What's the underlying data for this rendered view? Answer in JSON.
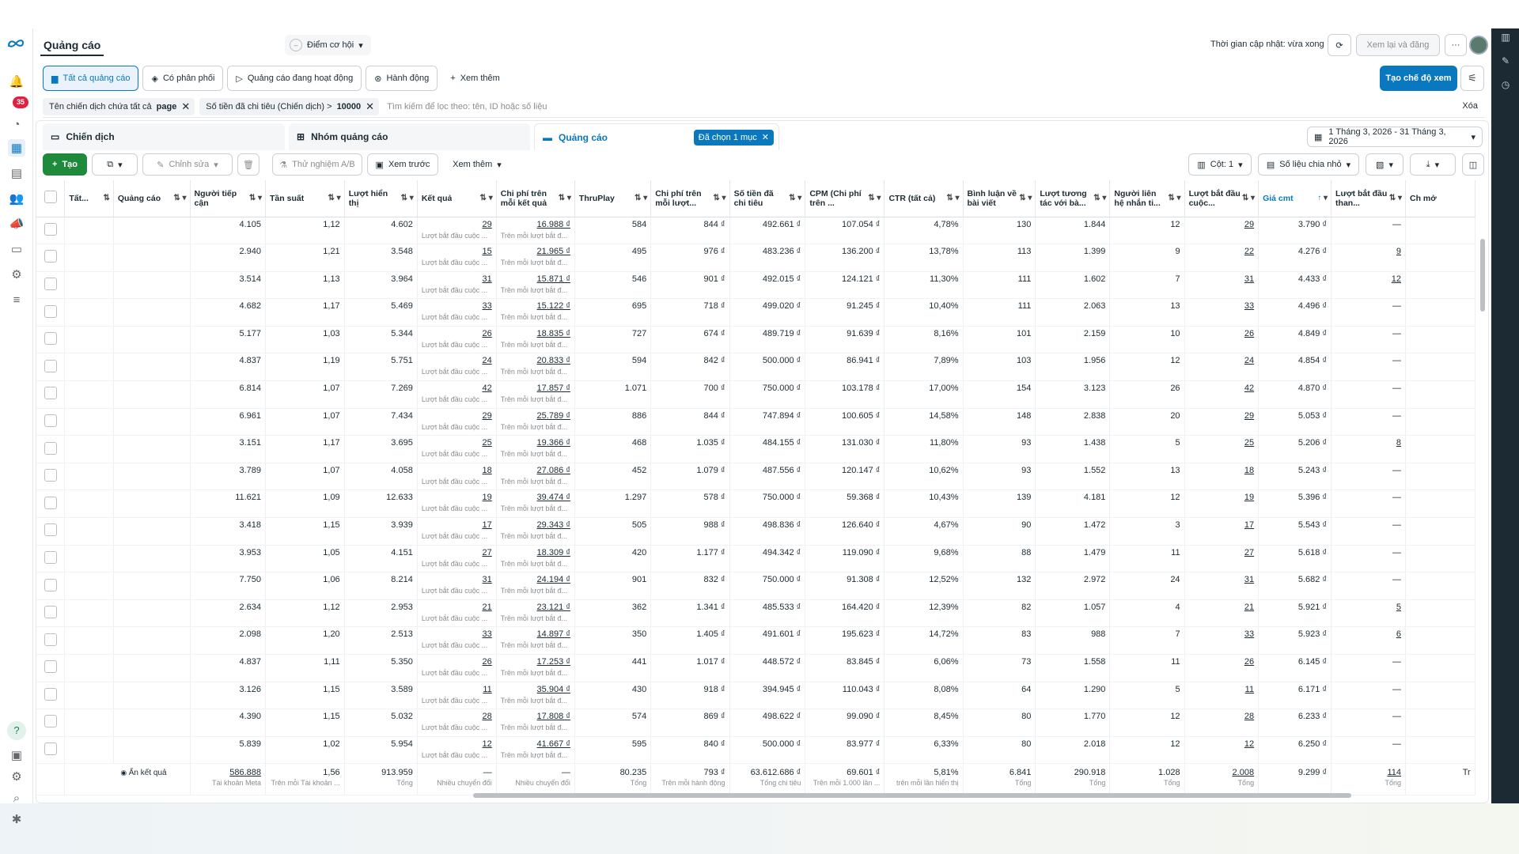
{
  "header": {
    "title": "Quảng cáo",
    "opportunity": "Điểm cơ hội",
    "update_text": "Thời gian cập nhật: vừa xong",
    "review_publish": "Xem lại và đăng",
    "more": "···"
  },
  "rail": {
    "badge": "35",
    "help": "?"
  },
  "tabs": [
    {
      "label": "Tất cả quảng cáo",
      "icon": "folder-icon"
    },
    {
      "label": "Có phân phối",
      "icon": "delivery-icon"
    },
    {
      "label": "Quảng cáo đang hoạt động",
      "icon": "play-icon"
    },
    {
      "label": "Hành động",
      "icon": "action-icon"
    },
    {
      "label": "Xem thêm",
      "icon": "plus-icon"
    }
  ],
  "create_view": "Tạo chế độ xem",
  "filters": {
    "chips": [
      {
        "label": "Tên chiến dịch chứa tất cả",
        "value": "page"
      },
      {
        "label": "Số tiền đã chi tiêu (Chiến dịch) >",
        "value": "10000"
      }
    ],
    "search_placeholder": "Tìm kiếm để lọc theo: tên, ID hoặc số liệu",
    "clear": "Xóa"
  },
  "levels": {
    "campaign": "Chiến dịch",
    "adset": "Nhóm quảng cáo",
    "ad": "Quảng cáo",
    "selected": "Đã chọn 1 mục"
  },
  "date_range": "1 Tháng 3, 2026 - 31 Tháng 3, 2026",
  "toolbar": {
    "create": "Tạo",
    "edit": "Chỉnh sửa",
    "ab_test": "Thử nghiệm A/B",
    "preview": "Xem trước",
    "more": "Xem thêm",
    "columns": "Cột: 1",
    "breakdown": "Số liệu chia nhỏ"
  },
  "columns": [
    "Tất...",
    "Quảng cáo",
    "Người tiếp cận",
    "Tần suất",
    "Lượt hiển thị",
    "Kết quả",
    "Chi phí trên mỗi kết quả",
    "ThruPlay",
    "Chi phí trên mỗi lượt...",
    "Số tiền đã chi tiêu",
    "CPM (Chi phí trên ...",
    "CTR (tất cả)",
    "Bình luận về bài viết",
    "Lượt tương tác với bà...",
    "Người liên hệ nhắn ti...",
    "Lượt bắt đầu cuộc...",
    "Giá cmt",
    "Lượt bắt đầu than...",
    "Ch mở"
  ],
  "result_sub": "Lượt bắt đầu cuộc ...",
  "cost_sub": "Trên mỗi lượt bắt đ...",
  "rows": [
    [
      "4.105",
      "1,12",
      "4.602",
      "29",
      "16.988 ₫",
      "584",
      "844 ₫",
      "492.661 ₫",
      "107.054 ₫",
      "4,78%",
      "130",
      "1.844",
      "12",
      "29",
      "3.790 ₫",
      "—"
    ],
    [
      "2.940",
      "1,21",
      "3.548",
      "15",
      "21.965 ₫",
      "495",
      "976 ₫",
      "483.236 ₫",
      "136.200 ₫",
      "13,78%",
      "113",
      "1.399",
      "9",
      "22",
      "4.276 ₫",
      "9"
    ],
    [
      "3.514",
      "1,13",
      "3.964",
      "31",
      "15.871 ₫",
      "546",
      "901 ₫",
      "492.015 ₫",
      "124.121 ₫",
      "11,30%",
      "111",
      "1.602",
      "7",
      "31",
      "4.433 ₫",
      "12"
    ],
    [
      "4.682",
      "1,17",
      "5.469",
      "33",
      "15.122 ₫",
      "695",
      "718 ₫",
      "499.020 ₫",
      "91.245 ₫",
      "10,40%",
      "111",
      "2.063",
      "13",
      "33",
      "4.496 ₫",
      "—"
    ],
    [
      "5.177",
      "1,03",
      "5.344",
      "26",
      "18.835 ₫",
      "727",
      "674 ₫",
      "489.719 ₫",
      "91.639 ₫",
      "8,16%",
      "101",
      "2.159",
      "10",
      "26",
      "4.849 ₫",
      "—"
    ],
    [
      "4.837",
      "1,19",
      "5.751",
      "24",
      "20.833 ₫",
      "594",
      "842 ₫",
      "500.000 ₫",
      "86.941 ₫",
      "7,89%",
      "103",
      "1.956",
      "12",
      "24",
      "4.854 ₫",
      "—"
    ],
    [
      "6.814",
      "1,07",
      "7.269",
      "42",
      "17.857 ₫",
      "1.071",
      "700 ₫",
      "750.000 ₫",
      "103.178 ₫",
      "17,00%",
      "154",
      "3.123",
      "26",
      "42",
      "4.870 ₫",
      "—"
    ],
    [
      "6.961",
      "1,07",
      "7.434",
      "29",
      "25.789 ₫",
      "886",
      "844 ₫",
      "747.894 ₫",
      "100.605 ₫",
      "14,58%",
      "148",
      "2.838",
      "20",
      "29",
      "5.053 ₫",
      "—"
    ],
    [
      "3.151",
      "1,17",
      "3.695",
      "25",
      "19.366 ₫",
      "468",
      "1.035 ₫",
      "484.155 ₫",
      "131.030 ₫",
      "11,80%",
      "93",
      "1.438",
      "5",
      "25",
      "5.206 ₫",
      "8"
    ],
    [
      "3.789",
      "1,07",
      "4.058",
      "18",
      "27.086 ₫",
      "452",
      "1.079 ₫",
      "487.556 ₫",
      "120.147 ₫",
      "10,62%",
      "93",
      "1.552",
      "13",
      "18",
      "5.243 ₫",
      "—"
    ],
    [
      "11.621",
      "1,09",
      "12.633",
      "19",
      "39.474 ₫",
      "1.297",
      "578 ₫",
      "750.000 ₫",
      "59.368 ₫",
      "10,43%",
      "139",
      "4.181",
      "12",
      "19",
      "5.396 ₫",
      "—"
    ],
    [
      "3.418",
      "1,15",
      "3.939",
      "17",
      "29.343 ₫",
      "505",
      "988 ₫",
      "498.836 ₫",
      "126.640 ₫",
      "4,67%",
      "90",
      "1.472",
      "3",
      "17",
      "5.543 ₫",
      "—"
    ],
    [
      "3.953",
      "1,05",
      "4.151",
      "27",
      "18.309 ₫",
      "420",
      "1.177 ₫",
      "494.342 ₫",
      "119.090 ₫",
      "9,68%",
      "88",
      "1.479",
      "11",
      "27",
      "5.618 ₫",
      "—"
    ],
    [
      "7.750",
      "1,06",
      "8.214",
      "31",
      "24.194 ₫",
      "901",
      "832 ₫",
      "750.000 ₫",
      "91.308 ₫",
      "12,52%",
      "132",
      "2.972",
      "24",
      "31",
      "5.682 ₫",
      "—"
    ],
    [
      "2.634",
      "1,12",
      "2.953",
      "21",
      "23.121 ₫",
      "362",
      "1.341 ₫",
      "485.533 ₫",
      "164.420 ₫",
      "12,39%",
      "82",
      "1.057",
      "4",
      "21",
      "5.921 ₫",
      "5"
    ],
    [
      "2.098",
      "1,20",
      "2.513",
      "33",
      "14.897 ₫",
      "350",
      "1.405 ₫",
      "491.601 ₫",
      "195.623 ₫",
      "14,72%",
      "83",
      "988",
      "7",
      "33",
      "5.923 ₫",
      "6"
    ],
    [
      "4.837",
      "1,11",
      "5.350",
      "26",
      "17.253 ₫",
      "441",
      "1.017 ₫",
      "448.572 ₫",
      "83.845 ₫",
      "6,06%",
      "73",
      "1.558",
      "11",
      "26",
      "6.145 ₫",
      "—"
    ],
    [
      "3.126",
      "1,15",
      "3.589",
      "11",
      "35.904 ₫",
      "430",
      "918 ₫",
      "394.945 ₫",
      "110.043 ₫",
      "8,08%",
      "64",
      "1.290",
      "5",
      "11",
      "6.171 ₫",
      "—"
    ],
    [
      "4.390",
      "1,15",
      "5.032",
      "28",
      "17.808 ₫",
      "574",
      "869 ₫",
      "498.622 ₫",
      "99.090 ₫",
      "8,45%",
      "80",
      "1.770",
      "12",
      "28",
      "6.233 ₫",
      "—"
    ],
    [
      "5.839",
      "1,02",
      "5.954",
      "12",
      "41.667 ₫",
      "595",
      "840 ₫",
      "500.000 ₫",
      "83.977 ₫",
      "6,33%",
      "80",
      "2.018",
      "12",
      "12",
      "6.250 ₫",
      "—"
    ]
  ],
  "totals": {
    "label": "Ẩn kết quả",
    "values": [
      "586.888",
      "1,56",
      "913.959",
      "—",
      "—",
      "80.235",
      "793 ₫",
      "63.612.686 ₫",
      "69.601 ₫",
      "5,81%",
      "6.841",
      "290.918",
      "1.028",
      "2.008",
      "9.299 ₫",
      "114",
      "Tr"
    ],
    "subs": [
      "Tài khoản Meta",
      "Trên mỗi Tài khoản ...",
      "Tổng",
      "Nhiều chuyển đổi",
      "Nhiều chuyển đổi",
      "Tổng",
      "Trên mỗi hành động",
      "Tổng chi tiêu",
      "Trên mỗi 1.000 lần ...",
      "trên mỗi lần hiển thị",
      "Tổng",
      "Tổng",
      "Tổng",
      "Tổng",
      "",
      "Tổng",
      ""
    ]
  }
}
